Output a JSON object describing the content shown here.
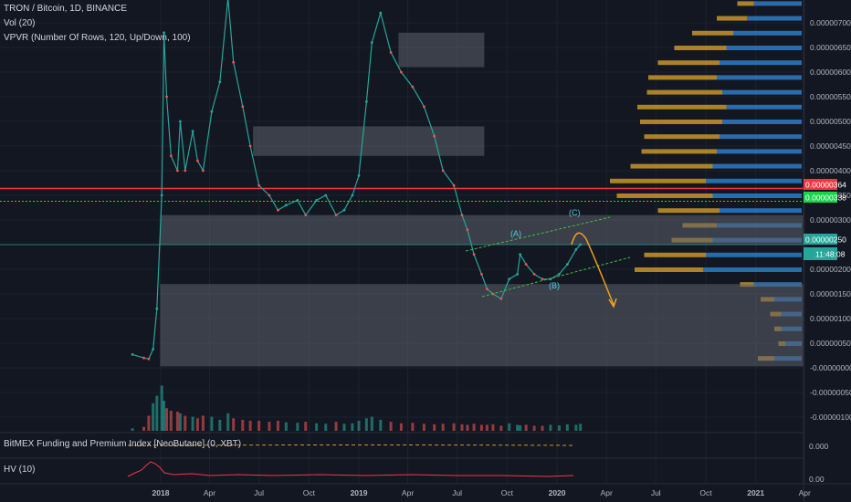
{
  "legend": {
    "title": "TRON / Bitcoin, 1D, BINANCE",
    "vol": "Vol (20)",
    "vpvr": "VPVR (Number Of Rows, 120, Up/Down, 100)",
    "funding": "BitMEX Funding and Premium Index [NeoButane] (0, XBT)",
    "hv": "HV (10)"
  },
  "badges": {
    "red_line": "0.00000364",
    "green_line": "0.00000338",
    "last_price": "0.00000250",
    "countdown": "11:48:08",
    "funding_value": "0.000",
    "hv_value": "0.00"
  },
  "wave_labels": [
    "(A)",
    "(B)",
    "(C)"
  ],
  "colors": {
    "background": "#131722",
    "up_candle": "#26a69a",
    "down_candle": "#ef5350",
    "vpvr_up": "#2e7bc4",
    "vpvr_down": "#c8952a",
    "zone": "#5d606b",
    "red_line": "#f23645",
    "green_line": "#17d44a",
    "wave_channel": "#3fbf3f",
    "projection_arrow": "#f0a020",
    "hv_line": "#f23645"
  },
  "chart_data": {
    "type": "line",
    "title": "TRON / Bitcoin, 1D, BINANCE",
    "x_tick_labels": [
      "2018",
      "Apr",
      "Jul",
      "Oct",
      "2019",
      "Apr",
      "Jul",
      "Oct",
      "2020",
      "Apr",
      "Jul",
      "Oct",
      "2021",
      "Apr"
    ],
    "y_tick_labels": [
      "0.00000700",
      "0.00000650",
      "0.00000600",
      "0.00000550",
      "0.00000500",
      "0.00000450",
      "0.00000400",
      "0.00000350",
      "0.00000300",
      "0.00000200",
      "0.00000150",
      "0.00000100",
      "0.00000050",
      "-0.00000000",
      "-0.00000050",
      "-0.00000100"
    ],
    "y_ticks": [
      7e-06,
      6.5e-06,
      6e-06,
      5.5e-06,
      5e-06,
      4.5e-06,
      4e-06,
      3.5e-06,
      3e-06,
      2e-06,
      1.5e-06,
      1e-06,
      5e-07,
      0,
      -5e-07,
      -1e-06
    ],
    "ylim": [
      -1.2e-06,
      7.4e-06
    ],
    "series": [
      {
        "x": [
          "2017-11-10",
          "2017-12-01",
          "2017-12-10",
          "2017-12-18",
          "2017-12-25",
          "2018-01-03",
          "2018-01-07",
          "2018-01-12",
          "2018-01-20",
          "2018-02-01",
          "2018-02-06",
          "2018-02-15",
          "2018-03-01",
          "2018-03-10",
          "2018-03-20",
          "2018-04-05",
          "2018-04-20",
          "2018-05-05",
          "2018-05-15",
          "2018-06-01",
          "2018-06-15",
          "2018-07-01",
          "2018-07-20",
          "2018-08-05",
          "2018-08-20",
          "2018-09-10",
          "2018-09-25",
          "2018-10-15",
          "2018-11-01",
          "2018-11-20",
          "2018-12-05",
          "2018-12-20",
          "2019-01-01",
          "2019-01-15",
          "2019-01-25",
          "2019-02-10",
          "2019-03-01",
          "2019-03-20",
          "2019-04-10",
          "2019-05-01",
          "2019-05-20",
          "2019-06-05",
          "2019-06-25",
          "2019-07-10",
          "2019-07-20",
          "2019-08-01",
          "2019-08-15",
          "2019-08-25",
          "2019-09-05",
          "2019-09-20",
          "2019-10-05",
          "2019-10-20",
          "2019-10-25",
          "2019-11-05",
          "2019-11-20",
          "2019-12-05",
          "2019-12-20",
          "2020-01-05",
          "2020-01-20",
          "2020-02-05",
          "2020-02-13"
        ],
        "y": [
          2.7e-07,
          2e-07,
          1.8e-07,
          3.8e-07,
          1.2e-06,
          3.5e-06,
          6.8e-06,
          5.5e-06,
          4.3e-06,
          4e-06,
          5e-06,
          4e-06,
          4.8e-06,
          4.2e-06,
          4e-06,
          5.2e-06,
          5.8e-06,
          7.5e-06,
          6.2e-06,
          5.3e-06,
          4.5e-06,
          3.7e-06,
          3.5e-06,
          3.2e-06,
          3.3e-06,
          3.4e-06,
          3.1e-06,
          3.4e-06,
          3.5e-06,
          3.1e-06,
          3.2e-06,
          3.5e-06,
          3.9e-06,
          5.4e-06,
          6.6e-06,
          7.2e-06,
          6.4e-06,
          6e-06,
          5.7e-06,
          5.3e-06,
          4.7e-06,
          4e-06,
          3.7e-06,
          3.1e-06,
          2.8e-06,
          2.3e-06,
          1.9e-06,
          1.6e-06,
          1.5e-06,
          1.4e-06,
          1.8e-06,
          1.9e-06,
          2.3e-06,
          2.1e-06,
          1.9e-06,
          1.8e-06,
          1.8e-06,
          1.9e-06,
          2.1e-06,
          2.4e-06,
          2.5e-06
        ]
      }
    ],
    "horizontal_lines": [
      {
        "value": 3.64e-06,
        "color": "#f23645",
        "style": "solid"
      },
      {
        "value": 3.38e-06,
        "color": "#17d44a",
        "style": "dotted"
      },
      {
        "value": 2.5e-06,
        "color": "#26a69a",
        "style": "solid"
      }
    ],
    "zones": [
      {
        "start": "2019-03-15",
        "end": "2019-08-20",
        "top": 6.8e-06,
        "bottom": 6.1e-06
      },
      {
        "start": "2018-06-20",
        "end": "2019-08-20",
        "top": 4.9e-06,
        "bottom": 4.3e-06
      },
      {
        "start": "2017-12-31",
        "end": "2021-06-15",
        "top": 3.1e-06,
        "bottom": 2.5e-06
      },
      {
        "start": "2017-12-31",
        "end": "2021-06-15",
        "top": 1.7e-06,
        "bottom": 3e-08
      }
    ],
    "volume": [
      0.05,
      0.08,
      0.3,
      0.55,
      0.7,
      0.9,
      0.6,
      0.45,
      0.4,
      0.38,
      0.35,
      0.3,
      0.28,
      0.25,
      0.3,
      0.28,
      0.22,
      0.35,
      0.25,
      0.22,
      0.2,
      0.2,
      0.18,
      0.2,
      0.17,
      0.16,
      0.18,
      0.15,
      0.14,
      0.18,
      0.14,
      0.15,
      0.2,
      0.25,
      0.28,
      0.22,
      0.18,
      0.15,
      0.16,
      0.14,
      0.13,
      0.14,
      0.15,
      0.13,
      0.12,
      0.14,
      0.12,
      0.12,
      0.13,
      0.1,
      0.15,
      0.12,
      0.11,
      0.12,
      0.1,
      0.1,
      0.12,
      0.11,
      0.13,
      0.12,
      0.14
    ],
    "vpvr_profile": [
      {
        "price": 7.4e-06,
        "up": 0.35,
        "down": 0.12
      },
      {
        "price": 7.1e-06,
        "up": 0.4,
        "down": 0.22
      },
      {
        "price": 6.8e-06,
        "up": 0.5,
        "down": 0.3
      },
      {
        "price": 6.5e-06,
        "up": 0.55,
        "down": 0.38
      },
      {
        "price": 6.2e-06,
        "up": 0.6,
        "down": 0.45
      },
      {
        "price": 5.9e-06,
        "up": 0.62,
        "down": 0.5
      },
      {
        "price": 5.6e-06,
        "up": 0.58,
        "down": 0.55
      },
      {
        "price": 5.3e-06,
        "up": 0.55,
        "down": 0.65
      },
      {
        "price": 5e-06,
        "up": 0.58,
        "down": 0.6
      },
      {
        "price": 4.7e-06,
        "up": 0.6,
        "down": 0.55
      },
      {
        "price": 4.4e-06,
        "up": 0.62,
        "down": 0.55
      },
      {
        "price": 4.1e-06,
        "up": 0.65,
        "down": 0.6
      },
      {
        "price": 3.8e-06,
        "up": 0.7,
        "down": 0.7
      },
      {
        "price": 3.5e-06,
        "up": 0.65,
        "down": 0.7
      },
      {
        "price": 3.2e-06,
        "up": 0.6,
        "down": 0.45
      },
      {
        "price": 2.9e-06,
        "up": 0.62,
        "down": 0.25
      },
      {
        "price": 2.6e-06,
        "up": 0.65,
        "down": 0.3
      },
      {
        "price": 2.3e-06,
        "up": 0.7,
        "down": 0.45
      },
      {
        "price": 2e-06,
        "up": 0.72,
        "down": 0.5
      },
      {
        "price": 1.7e-06,
        "up": 0.35,
        "down": 0.1
      },
      {
        "price": 1.4e-06,
        "up": 0.2,
        "down": 0.1
      },
      {
        "price": 1.1e-06,
        "up": 0.15,
        "down": 0.08
      },
      {
        "price": 8e-07,
        "up": 0.15,
        "down": 0.05
      },
      {
        "price": 5e-07,
        "up": 0.12,
        "down": 0.05
      },
      {
        "price": 2e-07,
        "up": 0.2,
        "down": 0.12
      }
    ],
    "grid": true
  }
}
